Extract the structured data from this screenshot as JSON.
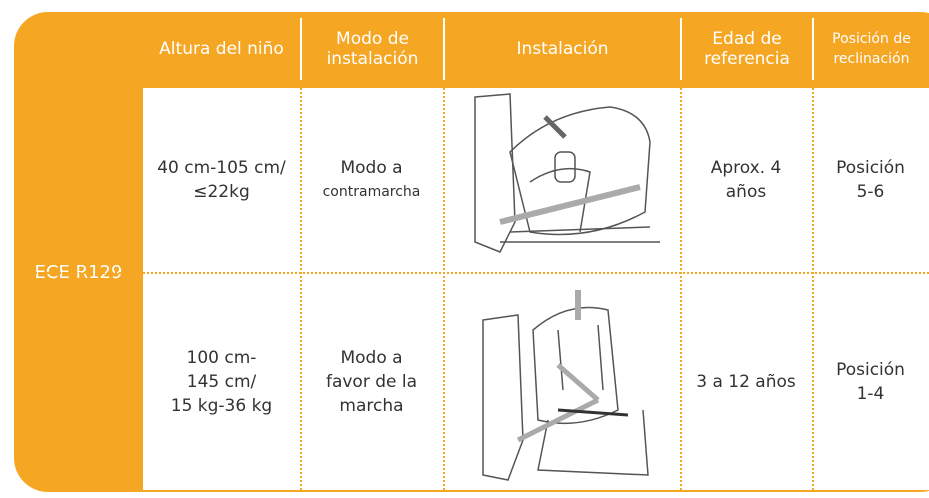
{
  "table": {
    "row_header": "ECE R129",
    "columns": [
      [
        "Altura del niño"
      ],
      [
        "Modo de",
        "instalación"
      ],
      [
        "Instalación"
      ],
      [
        "Edad de",
        "referencia"
      ],
      [
        "Posición de",
        "reclinación"
      ]
    ],
    "rows": [
      [
        [
          "40 cm-105 cm/",
          "≤22kg"
        ],
        [
          "Modo a",
          "contramarcha"
        ],
        [
          "Aprox. 4",
          "años"
        ],
        [
          "Posición",
          "5-6"
        ]
      ],
      [
        [
          "100 cm-",
          "145 cm/",
          "15 kg-36 kg"
        ],
        [
          "Modo a",
          "favor de la",
          "marcha"
        ],
        [
          "3 a 12 años"
        ],
        [
          "Posición",
          "1-4"
        ]
      ]
    ]
  }
}
